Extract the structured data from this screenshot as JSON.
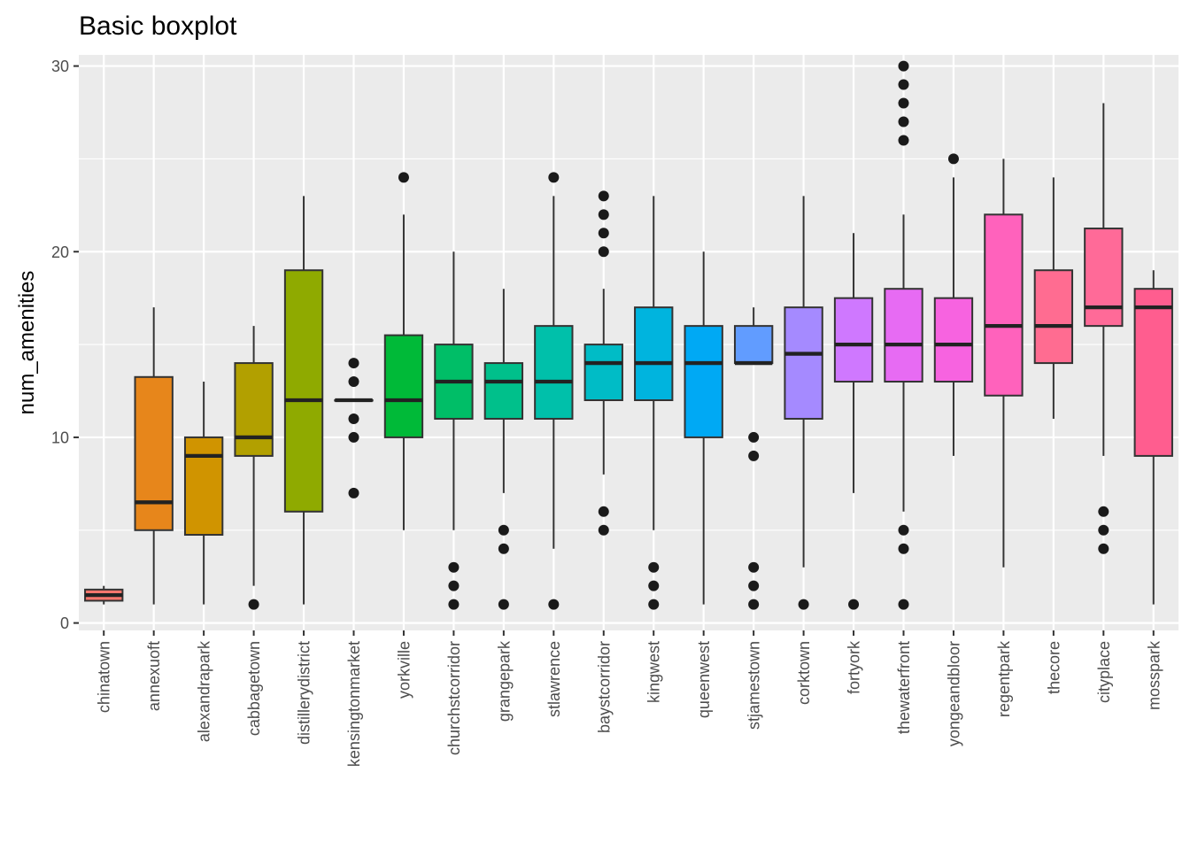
{
  "chart_data": {
    "type": "boxplot",
    "title": "Basic boxplot",
    "xlabel": "",
    "ylabel": "num_amenities",
    "ylim": [
      -0.4,
      30.6
    ],
    "yticks": [
      0,
      10,
      20,
      30
    ],
    "grid": true,
    "legend": "none",
    "categories": [
      "chinatown",
      "annexuoft",
      "alexandrapark",
      "cabbagetown",
      "distillerydistrict",
      "kensingtonmarket",
      "yorkville",
      "churchstcorridor",
      "grangepark",
      "stlawrence",
      "baystcorridor",
      "kingwest",
      "queenwest",
      "stjamestown",
      "corktown",
      "fortyork",
      "thewaterfront",
      "yongeandbloor",
      "regentpark",
      "thecore",
      "cityplace",
      "mosspark"
    ],
    "colors": [
      "#F8766D",
      "#E7861B",
      "#D09400",
      "#B2A000",
      "#8FAA00",
      "#5BB300",
      "#00BA38",
      "#00BE67",
      "#00C08B",
      "#00C0AA",
      "#00BCC6",
      "#00B4DE",
      "#00A9F4",
      "#619CFF",
      "#A58AFF",
      "#CF78FF",
      "#E76BF3",
      "#F763E0",
      "#FF62BC",
      "#FF6C91",
      "#FF6A98",
      "#FF5D8F"
    ],
    "boxes": [
      {
        "name": "chinatown",
        "whisker_low": 1,
        "q1": 1.2,
        "median": 1.5,
        "q3": 1.8,
        "whisker_high": 2,
        "outliers": []
      },
      {
        "name": "annexuoft",
        "whisker_low": 1,
        "q1": 5,
        "median": 6.5,
        "q3": 13.25,
        "whisker_high": 17,
        "outliers": []
      },
      {
        "name": "alexandrapark",
        "whisker_low": 1,
        "q1": 4.75,
        "median": 9,
        "q3": 10,
        "whisker_high": 13,
        "outliers": []
      },
      {
        "name": "cabbagetown",
        "whisker_low": 2,
        "q1": 9,
        "median": 10,
        "q3": 14,
        "whisker_high": 16,
        "outliers": [
          1
        ]
      },
      {
        "name": "distillerydistrict",
        "whisker_low": 1,
        "q1": 6,
        "median": 12,
        "q3": 19,
        "whisker_high": 23,
        "outliers": []
      },
      {
        "name": "kensingtonmarket",
        "whisker_low": 12,
        "q1": 12,
        "median": 12,
        "q3": 12,
        "whisker_high": 12,
        "outliers": [
          14,
          13,
          11,
          10,
          7
        ]
      },
      {
        "name": "yorkville",
        "whisker_low": 5,
        "q1": 10,
        "median": 12,
        "q3": 15.5,
        "whisker_high": 22,
        "outliers": [
          24
        ]
      },
      {
        "name": "churchstcorridor",
        "whisker_low": 5,
        "q1": 11,
        "median": 13,
        "q3": 15,
        "whisker_high": 20,
        "outliers": [
          3,
          2,
          1
        ]
      },
      {
        "name": "grangepark",
        "whisker_low": 7,
        "q1": 11,
        "median": 13,
        "q3": 14,
        "whisker_high": 18,
        "outliers": [
          5,
          4,
          1
        ]
      },
      {
        "name": "stlawrence",
        "whisker_low": 4,
        "q1": 11,
        "median": 13,
        "q3": 16,
        "whisker_high": 23,
        "outliers": [
          24,
          1
        ]
      },
      {
        "name": "baystcorridor",
        "whisker_low": 8,
        "q1": 12,
        "median": 14,
        "q3": 15,
        "whisker_high": 18,
        "outliers": [
          23,
          22,
          21,
          20,
          6,
          5
        ]
      },
      {
        "name": "kingwest",
        "whisker_low": 5,
        "q1": 12,
        "median": 14,
        "q3": 17,
        "whisker_high": 23,
        "outliers": [
          3,
          2,
          1
        ]
      },
      {
        "name": "queenwest",
        "whisker_low": 1,
        "q1": 10,
        "median": 14,
        "q3": 16,
        "whisker_high": 20,
        "outliers": []
      },
      {
        "name": "stjamestown",
        "whisker_low": 14,
        "q1": 14,
        "median": 14,
        "q3": 16,
        "whisker_high": 17,
        "outliers": [
          10,
          9,
          3,
          2,
          1
        ]
      },
      {
        "name": "corktown",
        "whisker_low": 3,
        "q1": 11,
        "median": 14.5,
        "q3": 17,
        "whisker_high": 23,
        "outliers": [
          1
        ]
      },
      {
        "name": "fortyork",
        "whisker_low": 7,
        "q1": 13,
        "median": 15,
        "q3": 17.5,
        "whisker_high": 21,
        "outliers": [
          1
        ]
      },
      {
        "name": "thewaterfront",
        "whisker_low": 6,
        "q1": 13,
        "median": 15,
        "q3": 18,
        "whisker_high": 22,
        "outliers": [
          30,
          29,
          28,
          27,
          26,
          5,
          4,
          1
        ]
      },
      {
        "name": "yongeandbloor",
        "whisker_low": 9,
        "q1": 13,
        "median": 15,
        "q3": 17.5,
        "whisker_high": 24,
        "outliers": [
          25
        ]
      },
      {
        "name": "regentpark",
        "whisker_low": 3,
        "q1": 12.25,
        "median": 16,
        "q3": 22,
        "whisker_high": 25,
        "outliers": []
      },
      {
        "name": "thecore",
        "whisker_low": 11,
        "q1": 14,
        "median": 16,
        "q3": 19,
        "whisker_high": 24,
        "outliers": []
      },
      {
        "name": "cityplace",
        "whisker_low": 9,
        "q1": 16,
        "median": 17,
        "q3": 21.25,
        "whisker_high": 28,
        "outliers": [
          6,
          5,
          4
        ]
      },
      {
        "name": "mosspark",
        "whisker_low": 1,
        "q1": 9,
        "median": 17,
        "q3": 18,
        "whisker_high": 19,
        "outliers": []
      }
    ]
  }
}
